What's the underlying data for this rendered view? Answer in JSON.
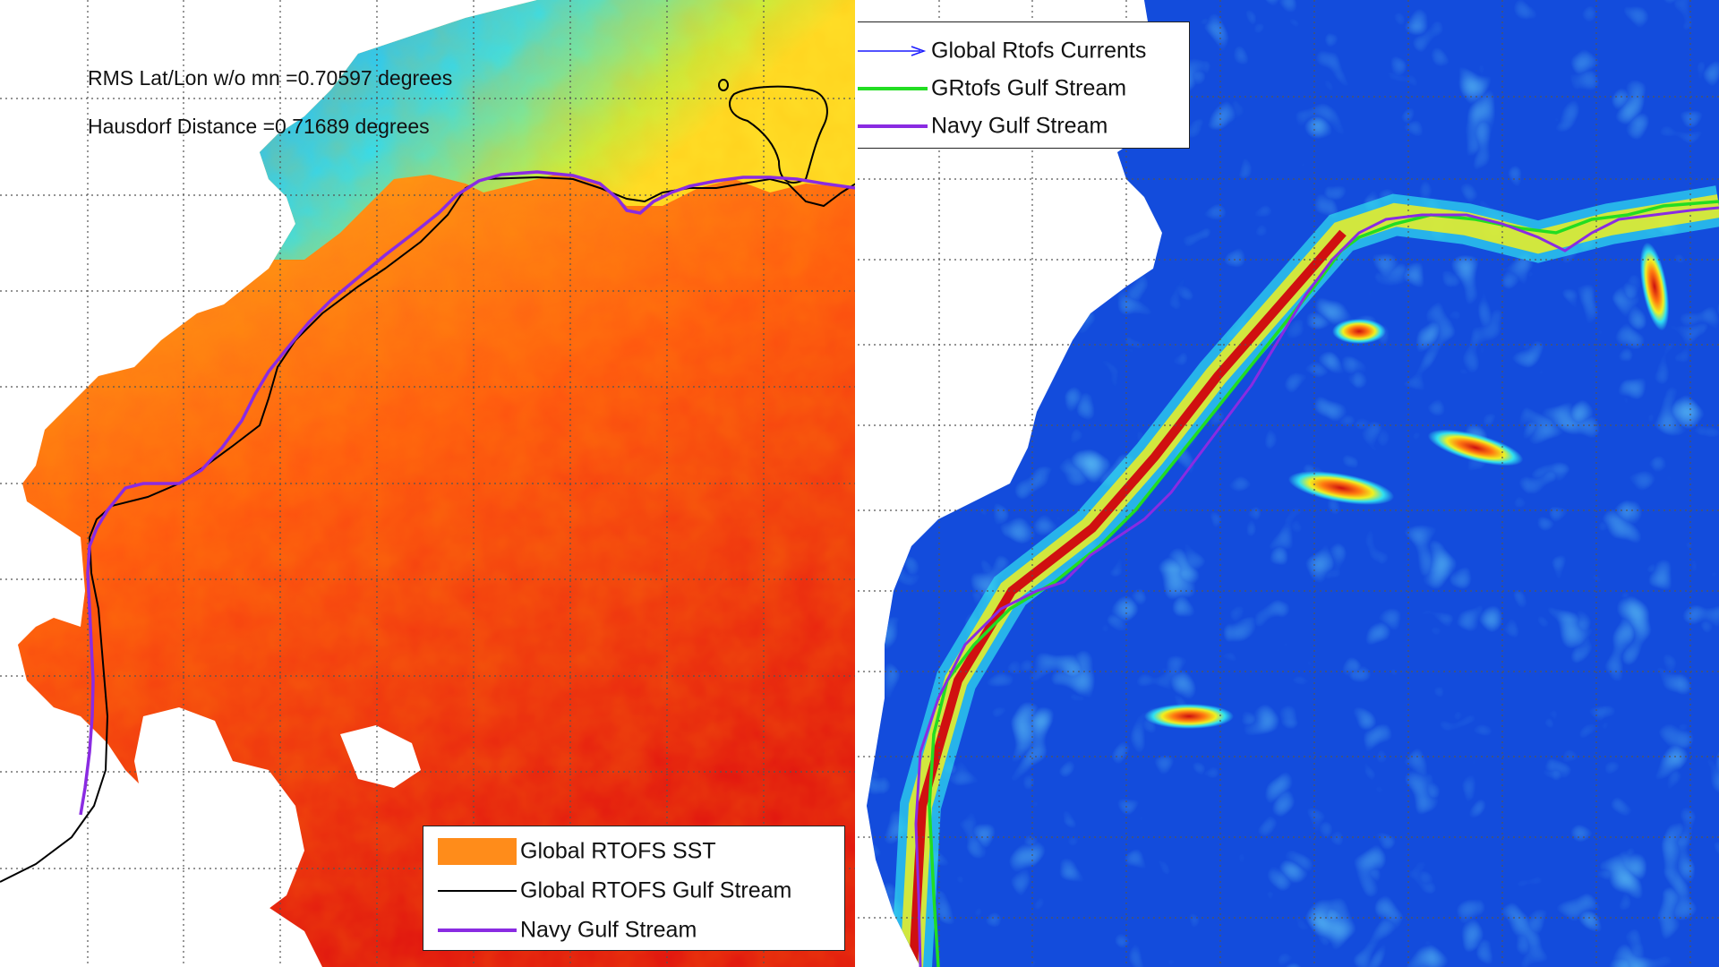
{
  "left_panel": {
    "stats": {
      "rms": "RMS Lat/Lon w/o mn =0.70597 degrees",
      "hausdorff": "Hausdorf Distance =0.71689 degrees"
    },
    "legend": [
      {
        "label": "Global RTOFS SST",
        "color": "#ff8c1a",
        "style": "fill"
      },
      {
        "label": "Global RTOFS Gulf Stream",
        "color": "#000000",
        "style": "line"
      },
      {
        "label": "Navy Gulf Stream",
        "color": "#8a2be2",
        "style": "line"
      }
    ]
  },
  "right_panel": {
    "legend": [
      {
        "label": "Global Rtofs Currents",
        "color": "#1a1aff",
        "style": "arrow"
      },
      {
        "label": "GRtofs Gulf Stream",
        "color": "#22dd22",
        "style": "line"
      },
      {
        "label": "Navy Gulf Stream",
        "color": "#8a2be2",
        "style": "line"
      }
    ]
  }
}
